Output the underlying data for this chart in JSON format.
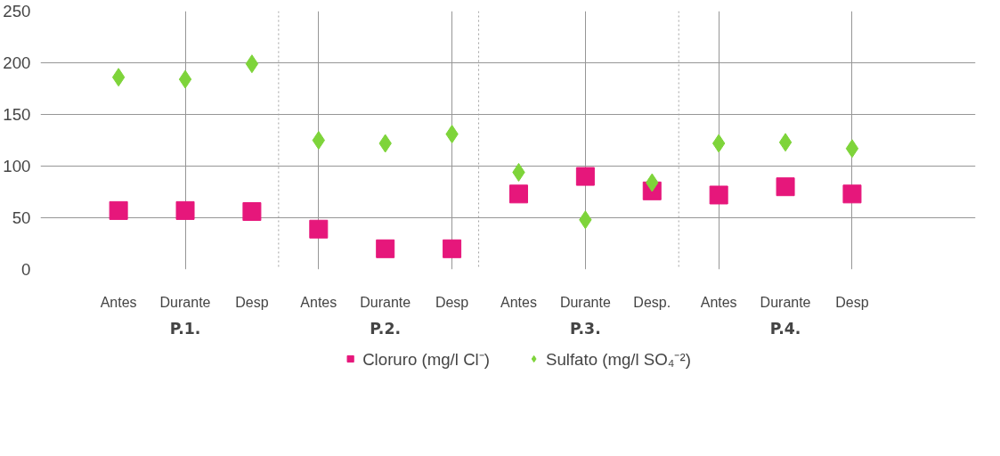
{
  "chart_data": {
    "type": "scatter",
    "categories": [
      "Antes",
      "Durante",
      "Desp",
      "Antes",
      "Durante",
      "Desp",
      "Antes",
      "Durante",
      "Desp.",
      "Antes",
      "Durante",
      "Desp"
    ],
    "ylim": [
      0,
      250
    ],
    "yticks": [
      0,
      50,
      100,
      150,
      200,
      250
    ],
    "series": [
      {
        "name": "Cloruro (mg/l Cl⁻)",
        "color": "#e6177b",
        "marker": "square",
        "values": [
          57,
          57,
          56,
          39,
          20,
          20,
          73,
          90,
          76,
          72,
          80,
          73
        ]
      },
      {
        "name": "Sulfato (mg/l SO₄⁻²)",
        "color": "#7ed43a",
        "marker": "diamond",
        "values": [
          186,
          184,
          199,
          125,
          122,
          131,
          94,
          48,
          84,
          122,
          123,
          117
        ]
      }
    ],
    "annotations": [
      "P.1.",
      "P.2.",
      "P.3.",
      "P.4."
    ],
    "grid": true,
    "legend": "bottom"
  }
}
